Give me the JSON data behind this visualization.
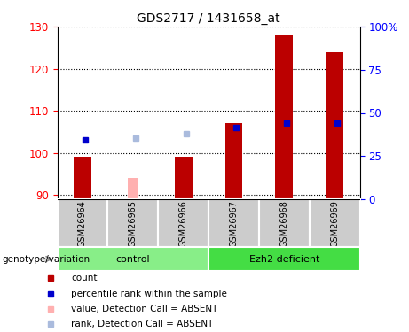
{
  "title": "GDS2717 / 1431658_at",
  "samples": [
    "GSM26964",
    "GSM26965",
    "GSM26966",
    "GSM26967",
    "GSM26968",
    "GSM26969"
  ],
  "count_values": [
    99,
    null,
    99,
    107,
    128,
    124
  ],
  "absent_value": [
    null,
    94,
    99,
    null,
    null,
    null
  ],
  "blue_dot_y": [
    103,
    null,
    null,
    106,
    107,
    107
  ],
  "lavender_dot_y": [
    null,
    103.5,
    104.5,
    null,
    null,
    null
  ],
  "ylim_left": [
    89,
    130
  ],
  "ylim_right": [
    0,
    100
  ],
  "yticks_left": [
    90,
    100,
    110,
    120,
    130
  ],
  "yticks_right": [
    0,
    25,
    50,
    75,
    100
  ],
  "ytick_labels_right": [
    "0",
    "25",
    "50",
    "75",
    "100%"
  ],
  "bar_width": 0.35,
  "absent_bar_width": 0.22,
  "absent_bar_color": "#ffb0b0",
  "count_bar_color": "#bb0000",
  "blue_dot_color": "#0000cc",
  "lavender_dot_color": "#aabbdd",
  "control_bg": "#88ee88",
  "ezh2_bg": "#44dd44",
  "sample_box_bg": "#cccccc",
  "legend_items": [
    "count",
    "percentile rank within the sample",
    "value, Detection Call = ABSENT",
    "rank, Detection Call = ABSENT"
  ],
  "legend_colors": [
    "#bb0000",
    "#0000cc",
    "#ffb0b0",
    "#aabbdd"
  ],
  "group_label": "genotype/variation",
  "control_label": "control",
  "ezh2_label": "Ezh2 deficient"
}
